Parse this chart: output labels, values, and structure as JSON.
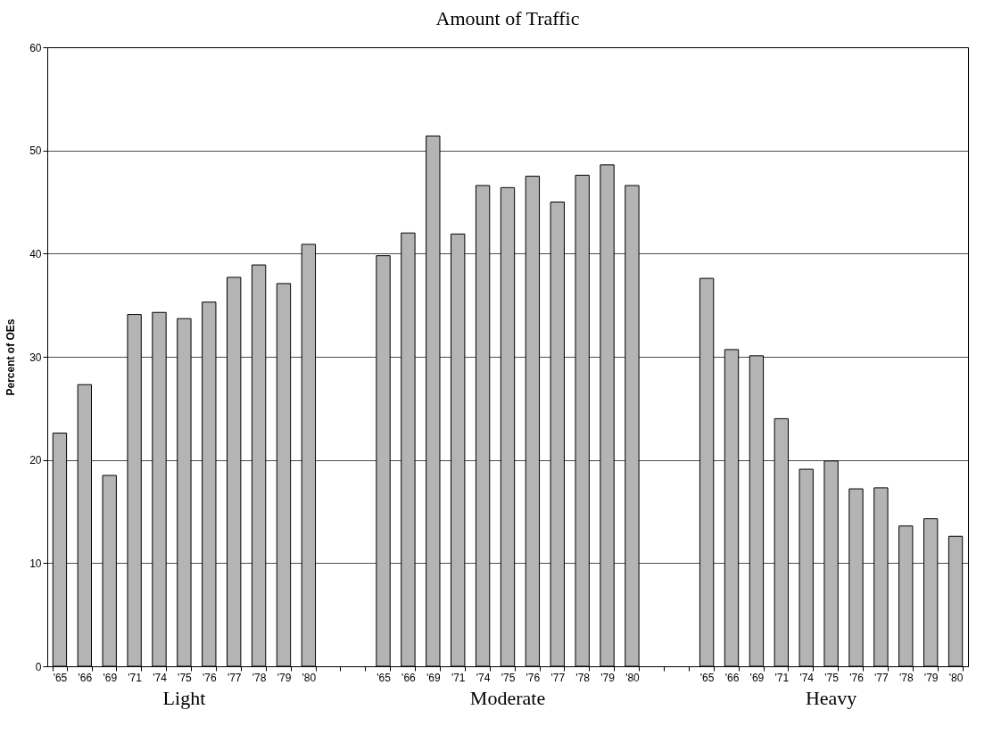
{
  "chart_data": {
    "type": "bar",
    "title": "Amount of Traffic",
    "ylabel": "Percent of OEs",
    "categories": [
      "'65",
      "'66",
      "'69",
      "'71",
      "'74",
      "'75",
      "'76",
      "'77",
      "'78",
      "'79",
      "'80",
      null,
      null,
      "'65",
      "'66",
      "'69",
      "'71",
      "'74",
      "'75",
      "'76",
      "'77",
      "'78",
      "'79",
      "'80",
      null,
      null,
      "'65",
      "'66",
      "'69",
      "'71",
      "'74",
      "'75",
      "'76",
      "'77",
      "'78",
      "'79",
      "'80"
    ],
    "values": [
      22.6,
      27.3,
      18.5,
      34.1,
      34.3,
      33.7,
      35.3,
      37.7,
      38.9,
      37.1,
      40.9,
      null,
      null,
      39.8,
      42.0,
      51.4,
      41.9,
      46.6,
      46.4,
      47.5,
      45.0,
      47.6,
      48.6,
      46.6,
      null,
      null,
      37.6,
      30.7,
      30.1,
      24.0,
      19.1,
      19.9,
      17.2,
      17.3,
      13.6,
      14.3,
      12.6
    ],
    "color": "#b4b4b4",
    "annotations": [
      "Light",
      "Moderate",
      "Heavy"
    ],
    "ylim": [
      0,
      60
    ],
    "yticks": [
      0,
      10,
      20,
      30,
      40,
      50,
      60
    ],
    "grid": "y"
  }
}
